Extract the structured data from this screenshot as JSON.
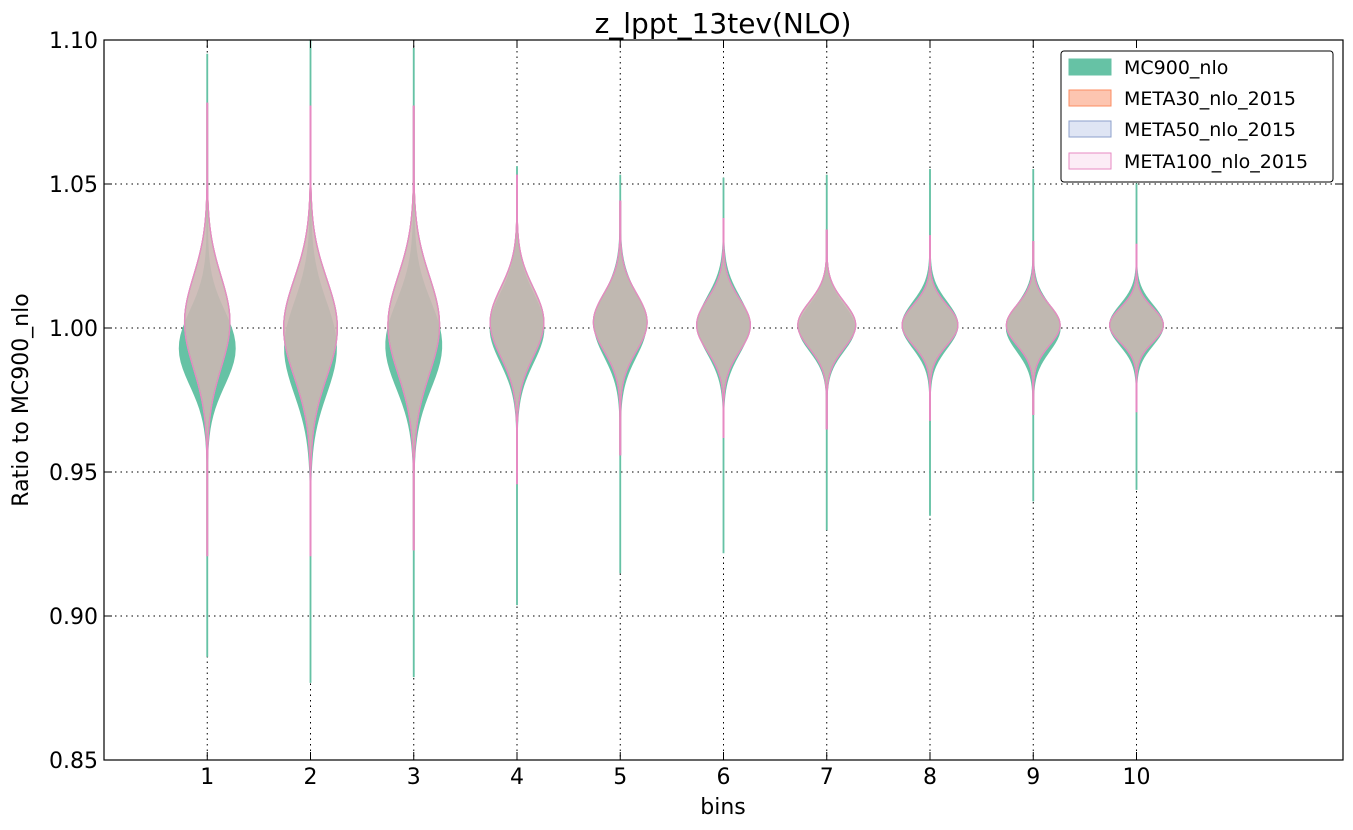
{
  "chart_data": {
    "type": "violin",
    "title": "z_lppt_13tev(NLO)",
    "xlabel": "bins",
    "ylabel": "Ratio to MC900_nlo",
    "ylim": [
      0.85,
      1.1
    ],
    "xlim": [
      0,
      12
    ],
    "grid": true,
    "legend_position": "top-right",
    "x_ticks": [
      "1",
      "2",
      "3",
      "4",
      "5",
      "6",
      "7",
      "8",
      "9",
      "10"
    ],
    "y_ticks": [
      "0.85",
      "0.90",
      "0.95",
      "1.00",
      "1.05",
      "1.10"
    ],
    "colors": {
      "MC900_nlo_fill": "#66c2a5",
      "META30_fill": "#fdc5b0",
      "META30_edge": "#fc8d62",
      "META50_fill": "#dfe5f4",
      "META50_edge": "#8da0cb",
      "META100_fill": "#fcecf6",
      "META100_edge": "#e78ac3",
      "overlap_fill": "#b1a198"
    },
    "series": [
      {
        "name": "MC900_nlo",
        "style": "filled",
        "bins": [
          {
            "x": 1,
            "min": 0.886,
            "max": 1.095,
            "center": 0.993,
            "sigma": 0.013,
            "width": 0.27
          },
          {
            "x": 2,
            "min": 0.877,
            "max": 1.1,
            "center": 0.993,
            "sigma": 0.016,
            "width": 0.25
          },
          {
            "x": 3,
            "min": 0.879,
            "max": 1.097,
            "center": 0.994,
            "sigma": 0.015,
            "width": 0.27
          },
          {
            "x": 4,
            "min": 0.904,
            "max": 1.056,
            "center": 1.0,
            "sigma": 0.012,
            "width": 0.26
          },
          {
            "x": 5,
            "min": 0.915,
            "max": 1.053,
            "center": 1.001,
            "sigma": 0.011,
            "width": 0.25
          },
          {
            "x": 6,
            "min": 0.922,
            "max": 1.052,
            "center": 1.001,
            "sigma": 0.01,
            "width": 0.25
          },
          {
            "x": 7,
            "min": 0.93,
            "max": 1.053,
            "center": 1.0,
            "sigma": 0.008,
            "width": 0.27
          },
          {
            "x": 8,
            "min": 0.935,
            "max": 1.055,
            "center": 1.001,
            "sigma": 0.008,
            "width": 0.27
          },
          {
            "x": 9,
            "min": 0.94,
            "max": 1.055,
            "center": 1.0,
            "sigma": 0.008,
            "width": 0.26
          },
          {
            "x": 10,
            "min": 0.944,
            "max": 1.05,
            "center": 1.001,
            "sigma": 0.007,
            "width": 0.26
          }
        ]
      },
      {
        "name": "META30_nlo_2015",
        "style": "filled",
        "bins": [
          {
            "x": 1,
            "min": 0.921,
            "max": 1.078,
            "center": 1.002,
            "sigma": 0.016,
            "width": 0.22
          },
          {
            "x": 2,
            "min": 0.921,
            "max": 1.077,
            "center": 1.0,
            "sigma": 0.017,
            "width": 0.26
          },
          {
            "x": 3,
            "min": 0.923,
            "max": 1.077,
            "center": 1.001,
            "sigma": 0.017,
            "width": 0.25
          },
          {
            "x": 4,
            "min": 0.946,
            "max": 1.053,
            "center": 1.002,
            "sigma": 0.012,
            "width": 0.26
          },
          {
            "x": 5,
            "min": 0.956,
            "max": 1.044,
            "center": 1.002,
            "sigma": 0.01,
            "width": 0.26
          },
          {
            "x": 6,
            "min": 0.962,
            "max": 1.038,
            "center": 1.001,
            "sigma": 0.009,
            "width": 0.26
          },
          {
            "x": 7,
            "min": 0.965,
            "max": 1.034,
            "center": 1.001,
            "sigma": 0.008,
            "width": 0.28
          },
          {
            "x": 8,
            "min": 0.968,
            "max": 1.032,
            "center": 1.001,
            "sigma": 0.007,
            "width": 0.27
          },
          {
            "x": 9,
            "min": 0.97,
            "max": 1.03,
            "center": 1.001,
            "sigma": 0.007,
            "width": 0.26
          },
          {
            "x": 10,
            "min": 0.971,
            "max": 1.029,
            "center": 1.001,
            "sigma": 0.006,
            "width": 0.26
          }
        ]
      },
      {
        "name": "META50_nlo_2015",
        "style": "outline",
        "bins": [
          {
            "x": 1,
            "min": 0.921,
            "max": 1.078,
            "center": 1.002,
            "sigma": 0.016,
            "width": 0.22
          },
          {
            "x": 2,
            "min": 0.921,
            "max": 1.077,
            "center": 1.0,
            "sigma": 0.017,
            "width": 0.26
          },
          {
            "x": 3,
            "min": 0.923,
            "max": 1.077,
            "center": 1.001,
            "sigma": 0.017,
            "width": 0.25
          },
          {
            "x": 4,
            "min": 0.946,
            "max": 1.053,
            "center": 1.002,
            "sigma": 0.012,
            "width": 0.26
          },
          {
            "x": 5,
            "min": 0.956,
            "max": 1.044,
            "center": 1.002,
            "sigma": 0.01,
            "width": 0.26
          },
          {
            "x": 6,
            "min": 0.962,
            "max": 1.038,
            "center": 1.001,
            "sigma": 0.009,
            "width": 0.26
          },
          {
            "x": 7,
            "min": 0.965,
            "max": 1.034,
            "center": 1.001,
            "sigma": 0.008,
            "width": 0.28
          },
          {
            "x": 8,
            "min": 0.968,
            "max": 1.032,
            "center": 1.001,
            "sigma": 0.007,
            "width": 0.27
          },
          {
            "x": 9,
            "min": 0.97,
            "max": 1.03,
            "center": 1.001,
            "sigma": 0.007,
            "width": 0.26
          },
          {
            "x": 10,
            "min": 0.971,
            "max": 1.029,
            "center": 1.001,
            "sigma": 0.006,
            "width": 0.26
          }
        ]
      },
      {
        "name": "META100_nlo_2015",
        "style": "outline",
        "bins": [
          {
            "x": 1,
            "min": 0.921,
            "max": 1.078,
            "center": 1.002,
            "sigma": 0.016,
            "width": 0.22
          },
          {
            "x": 2,
            "min": 0.921,
            "max": 1.077,
            "center": 1.0,
            "sigma": 0.017,
            "width": 0.26
          },
          {
            "x": 3,
            "min": 0.923,
            "max": 1.077,
            "center": 1.001,
            "sigma": 0.017,
            "width": 0.25
          },
          {
            "x": 4,
            "min": 0.946,
            "max": 1.053,
            "center": 1.002,
            "sigma": 0.012,
            "width": 0.26
          },
          {
            "x": 5,
            "min": 0.956,
            "max": 1.044,
            "center": 1.002,
            "sigma": 0.01,
            "width": 0.26
          },
          {
            "x": 6,
            "min": 0.962,
            "max": 1.038,
            "center": 1.001,
            "sigma": 0.009,
            "width": 0.26
          },
          {
            "x": 7,
            "min": 0.965,
            "max": 1.034,
            "center": 1.001,
            "sigma": 0.008,
            "width": 0.28
          },
          {
            "x": 8,
            "min": 0.968,
            "max": 1.032,
            "center": 1.001,
            "sigma": 0.007,
            "width": 0.27
          },
          {
            "x": 9,
            "min": 0.97,
            "max": 1.03,
            "center": 1.001,
            "sigma": 0.007,
            "width": 0.26
          },
          {
            "x": 10,
            "min": 0.971,
            "max": 1.029,
            "center": 1.001,
            "sigma": 0.006,
            "width": 0.26
          }
        ]
      }
    ]
  }
}
